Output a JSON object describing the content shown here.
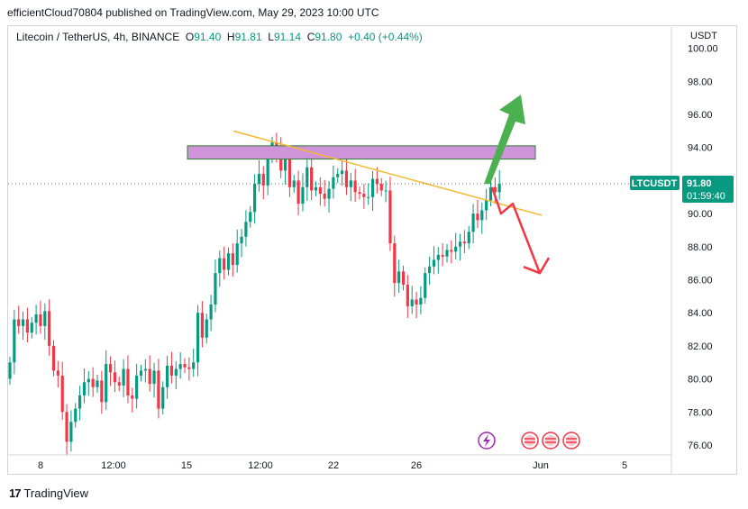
{
  "header": {
    "publish_line": "efficientCloud70804 published on TradingView.com, May 29, 2023 10:00 UTC"
  },
  "symbol": {
    "name": "Litecoin / TetherUS, 4h, BINANCE",
    "open_label": "O",
    "open": "91.40",
    "high_label": "H",
    "high": "91.81",
    "low_label": "L",
    "low": "91.14",
    "close_label": "C",
    "close": "91.80",
    "change": "+0.40 (+0.44%)"
  },
  "currency": "USDT",
  "price_tag": {
    "ticker": "LTCUSDT",
    "price": "91.80",
    "countdown": "01:59:40"
  },
  "footer": {
    "brand": "TradingView"
  },
  "colors": {
    "up": "#089981",
    "down": "#f23645",
    "zone_fill": "#ce93d8",
    "zone_border": "#2e7d32",
    "trendline": "#f5b82e",
    "arrow_up": "#4caf50",
    "arrow_down": "#f23645"
  },
  "chart_data": {
    "type": "candlestick",
    "y_ticks": [
      "76.00",
      "78.00",
      "80.00",
      "82.00",
      "84.00",
      "86.00",
      "88.00",
      "90.00",
      "92.00",
      "94.00",
      "96.00",
      "98.00",
      "100.00"
    ],
    "ylim": [
      75,
      100
    ],
    "x_ticks": [
      "8",
      "12:00",
      "15",
      "12:00",
      "22",
      "26",
      "Jun",
      "5"
    ],
    "closes": [
      81.0,
      83.6,
      83.2,
      83.6,
      82.8,
      83.4,
      83.9,
      83.2,
      84.1,
      82.0,
      80.5,
      80.2,
      78.0,
      76.2,
      77.4,
      78.2,
      79.0,
      79.8,
      80.0,
      79.5,
      79.9,
      78.6,
      80.9,
      80.4,
      79.8,
      79.6,
      80.6,
      79.0,
      78.8,
      80.2,
      80.5,
      80.6,
      79.7,
      80.5,
      78.2,
      79.5,
      80.8,
      80.2,
      80.6,
      80.9,
      80.7,
      80.6,
      81.0,
      84.0,
      82.5,
      83.6,
      84.5,
      86.4,
      87.3,
      86.6,
      87.6,
      86.9,
      88.2,
      88.6,
      89.5,
      90.1,
      91.8,
      92.4,
      91.7,
      93.4,
      94.3,
      93.8,
      92.6,
      93.4,
      91.6,
      92.0,
      90.6,
      91.6,
      92.8,
      91.4,
      91.6,
      91.2,
      90.9,
      91.5,
      92.2,
      92.4,
      92.6,
      91.6,
      92.0,
      91.3,
      91.2,
      91.0,
      91.0,
      92.1,
      91.8,
      91.4,
      91.4,
      88.2,
      85.8,
      86.5,
      85.7,
      84.4,
      84.8,
      84.5,
      84.9,
      86.4,
      86.8,
      87.2,
      87.5,
      87.4,
      87.8,
      87.7,
      88.0,
      88.3,
      88.2,
      88.9,
      90.0,
      89.6,
      90.2,
      90.8,
      91.6,
      91.3,
      91.8
    ],
    "resistance_zone": [
      93.3,
      94.1
    ],
    "trendline": {
      "from": [
        259,
        95.0
      ],
      "to": [
        601,
        89.9
      ]
    },
    "projection_up": {
      "from": [
        540,
        91.8
      ],
      "to": [
        578,
        97.2
      ]
    },
    "projection_down": {
      "points": [
        [
          546,
          91.6
        ],
        [
          556,
          90.0
        ],
        [
          569,
          90.6
        ],
        [
          599,
          86.4
        ]
      ]
    },
    "last_price": 91.8
  }
}
